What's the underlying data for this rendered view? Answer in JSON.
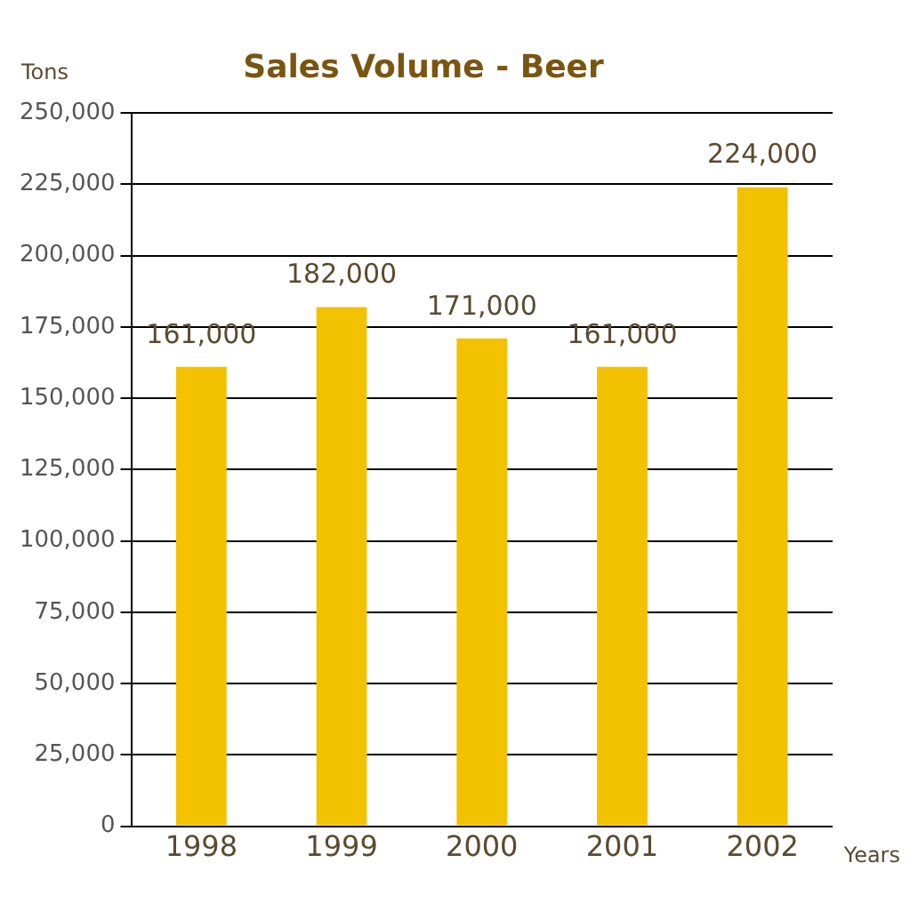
{
  "chart_data": {
    "type": "bar",
    "title": "Sales Volume - Beer",
    "xlabel": "Years",
    "ylabel": "Tons",
    "categories": [
      "1998",
      "1999",
      "2000",
      "2001",
      "2002"
    ],
    "values": [
      161000,
      182000,
      171000,
      161000,
      224000
    ],
    "color": "#f2c200",
    "value_labels": [
      "161,000",
      "182,000",
      "171,000",
      "161,000",
      "224,000"
    ],
    "ylim": [
      0,
      250000
    ],
    "yticks": [
      0,
      {
        "value": 25000,
        "label": "25,000"
      },
      {
        "value": 50000,
        "label": "50,000"
      },
      {
        "value": 75000,
        "label": "75,000"
      },
      {
        "value": 100000,
        "label": "100,000"
      },
      {
        "value": 125000,
        "label": "125,000"
      },
      {
        "value": 150000,
        "label": "150,000"
      },
      {
        "value": 175000,
        "label": "175,000"
      },
      {
        "value": 200000,
        "label": "200,000"
      },
      {
        "value": 225000,
        "label": "225,000"
      },
      {
        "value": 250000,
        "label": "250,000"
      }
    ],
    "grid": "y",
    "legend": false
  }
}
